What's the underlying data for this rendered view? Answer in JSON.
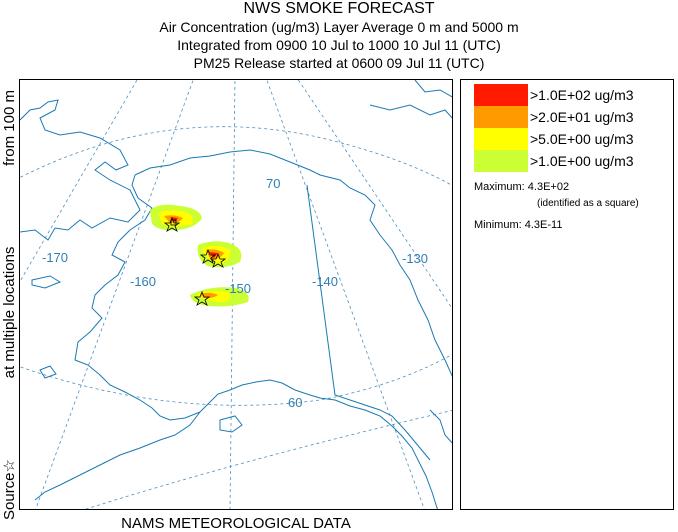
{
  "header": {
    "title": "NWS SMOKE FORECAST",
    "line2": "Air Concentration (ug/m3) Layer Average    0 m and  5000 m",
    "line3": "Integrated from 0900 10 Jul to 1000 10 Jul 11 (UTC)",
    "line4": "PM25 Release started at 0600 09 Jul 11 (UTC)"
  },
  "side_label": {
    "left": "Source☆",
    "middle": "at multiple locations",
    "right": "from   100 m"
  },
  "bottom_label": "NAMS METEOROLOGICAL DATA",
  "map": {
    "graticule_labels": {
      "lon_170": "-170",
      "lon_160": "-160",
      "lon_150": "-150",
      "lon_140": "-140",
      "lon_130": "-130",
      "lat_70": "70",
      "lat_60": "60"
    },
    "colors": {
      "coast": "#1a7ab3",
      "graticule": "#4a90c0",
      "border": "#1a7ab3",
      "label": "#2e7fb5"
    }
  },
  "legend": {
    "items": [
      {
        "label": ">1.0E+02 ug/m3",
        "color": "#ff1a00"
      },
      {
        "label": ">2.0E+01 ug/m3",
        "color": "#ff9a00"
      },
      {
        "label": ">5.0E+00 ug/m3",
        "color": "#ffff00"
      },
      {
        "label": ">1.0E+00 ug/m3",
        "color": "#ccff33"
      }
    ],
    "maximum": "Maximum: 4.3E+02",
    "maximum_note": "(identified as a square)",
    "minimum": "Minimum: 4.3E-11"
  }
}
